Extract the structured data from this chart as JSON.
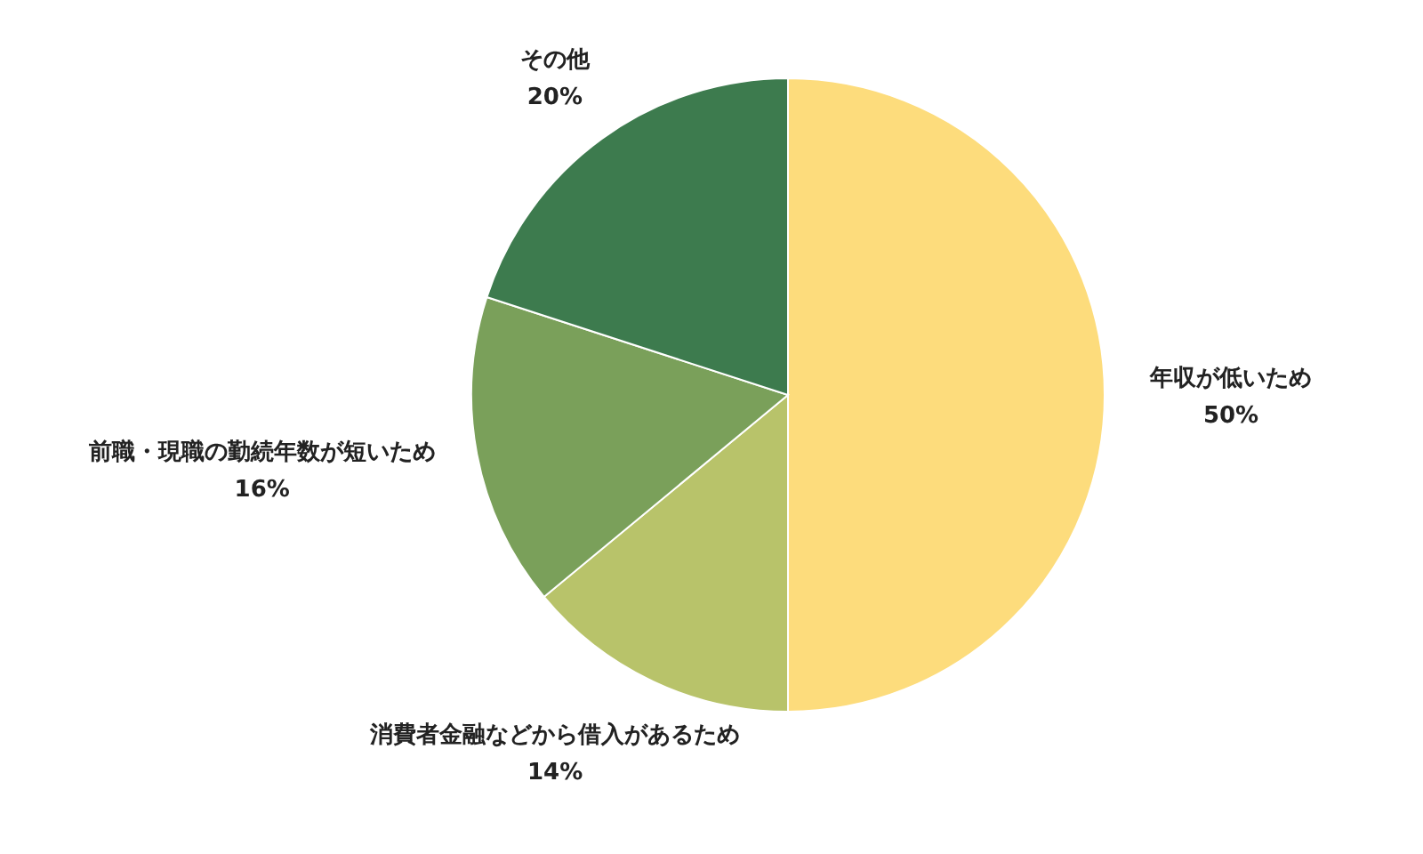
{
  "chart_data": {
    "type": "pie",
    "categories": [
      "年収が低いため",
      "消費者金融などから借入があるため",
      "前職・現職の勤続年数が短いため",
      "その他"
    ],
    "values": [
      50,
      14,
      16,
      20
    ],
    "colors": [
      "#fddc7c",
      "#b8c36a",
      "#7aa05a",
      "#3d7b4e"
    ],
    "value_labels": [
      "50%",
      "14%",
      "16%",
      "20%"
    ]
  }
}
